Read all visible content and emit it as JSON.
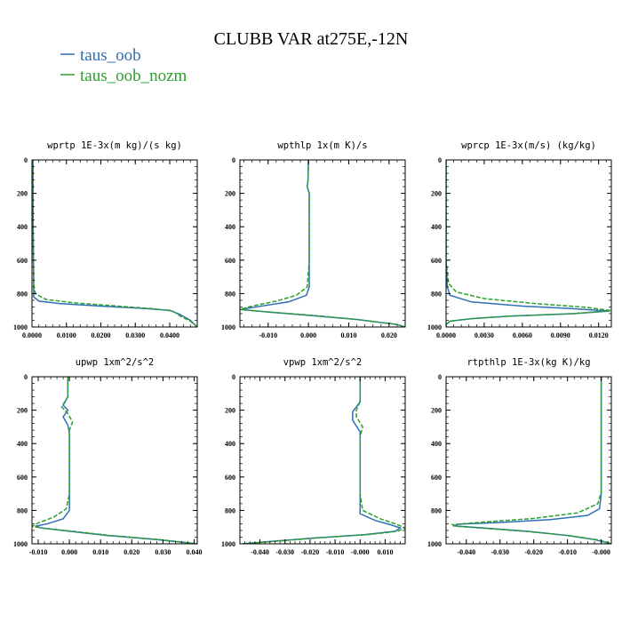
{
  "figure": {
    "title": "CLUBB VAR at275E,-12N",
    "legend": [
      {
        "label": "taus_oob",
        "color": "#2f6fb5",
        "dashed": false
      },
      {
        "label": "taus_oob_nozm",
        "color": "#2ca02c",
        "dashed": true
      }
    ]
  },
  "chart_data": [
    {
      "type": "line",
      "title": "wprtp  1E-3x(m kg)/(s kg)",
      "xlim": [
        0.0,
        0.048
      ],
      "ylim": [
        1000,
        0
      ],
      "xticks": [
        0.0,
        0.01,
        0.02,
        0.03,
        0.04
      ],
      "xticklabels": [
        "0.0000",
        "0.0100",
        "0.0200",
        "0.0300",
        "0.0400"
      ],
      "yticks": [
        0,
        200,
        400,
        600,
        800,
        1000
      ],
      "series": [
        {
          "name": "taus_oob",
          "points": [
            [
              0.0003,
              0
            ],
            [
              0.0003,
              300
            ],
            [
              0.0004,
              600
            ],
            [
              0.0005,
              780
            ],
            [
              0.0005,
              820
            ],
            [
              0.002,
              845
            ],
            [
              0.008,
              860
            ],
            [
              0.02,
              875
            ],
            [
              0.032,
              888
            ],
            [
              0.04,
              900
            ],
            [
              0.043,
              925
            ],
            [
              0.046,
              960
            ],
            [
              0.048,
              1000
            ]
          ]
        },
        {
          "name": "taus_oob_nozm",
          "points": [
            [
              0.0003,
              0
            ],
            [
              0.0003,
              300
            ],
            [
              0.0004,
              600
            ],
            [
              0.0006,
              760
            ],
            [
              0.001,
              800
            ],
            [
              0.004,
              835
            ],
            [
              0.012,
              855
            ],
            [
              0.025,
              875
            ],
            [
              0.035,
              890
            ],
            [
              0.041,
              905
            ],
            [
              0.043,
              935
            ],
            [
              0.046,
              965
            ],
            [
              0.048,
              1000
            ]
          ]
        }
      ]
    },
    {
      "type": "line",
      "title": "wpthlp  1x(m K)/s",
      "xlim": [
        -0.017,
        0.024
      ],
      "ylim": [
        1000,
        0
      ],
      "xticks": [
        -0.01,
        0.0,
        0.01,
        0.02
      ],
      "xticklabels": [
        "-0.010",
        "0.000",
        "0.010",
        "0.020"
      ],
      "yticks": [
        0,
        200,
        400,
        600,
        800,
        1000
      ],
      "series": [
        {
          "name": "taus_oob",
          "points": [
            [
              0.0,
              0
            ],
            [
              -0.0001,
              120
            ],
            [
              -0.0003,
              160
            ],
            [
              0.0002,
              200
            ],
            [
              0.0002,
              400
            ],
            [
              0.0002,
              600
            ],
            [
              0.0002,
              760
            ],
            [
              -0.0005,
              810
            ],
            [
              -0.005,
              850
            ],
            [
              -0.013,
              880
            ],
            [
              -0.017,
              895
            ],
            [
              -0.01,
              910
            ],
            [
              0.0,
              930
            ],
            [
              0.012,
              955
            ],
            [
              0.022,
              985
            ],
            [
              0.024,
              1000
            ]
          ]
        },
        {
          "name": "taus_oob_nozm",
          "points": [
            [
              0.0,
              0
            ],
            [
              -0.0001,
              120
            ],
            [
              -0.0003,
              160
            ],
            [
              0.0002,
              200
            ],
            [
              0.0002,
              400
            ],
            [
              0.0002,
              600
            ],
            [
              -0.0003,
              760
            ],
            [
              -0.003,
              810
            ],
            [
              -0.008,
              845
            ],
            [
              -0.014,
              875
            ],
            [
              -0.017,
              895
            ],
            [
              -0.009,
              912
            ],
            [
              0.001,
              930
            ],
            [
              0.012,
              955
            ],
            [
              0.022,
              985
            ],
            [
              0.024,
              1000
            ]
          ]
        }
      ]
    },
    {
      "type": "line",
      "title": "wprcp  1E-3x(m/s) (kg/kg)",
      "xlim": [
        0.0,
        0.013
      ],
      "ylim": [
        1000,
        0
      ],
      "xticks": [
        0.0,
        0.003,
        0.006,
        0.009,
        0.012
      ],
      "xticklabels": [
        "0.0000",
        "0.0030",
        "0.0060",
        "0.0090",
        "0.0120"
      ],
      "yticks": [
        0,
        200,
        400,
        600,
        800,
        1000
      ],
      "series": [
        {
          "name": "taus_oob",
          "points": [
            [
              0.0,
              0
            ],
            [
              0.0,
              600
            ],
            [
              0.0001,
              760
            ],
            [
              0.0003,
              810
            ],
            [
              0.002,
              850
            ],
            [
              0.006,
              875
            ],
            [
              0.01,
              890
            ],
            [
              0.0128,
              905
            ],
            [
              0.01,
              920
            ],
            [
              0.005,
              935
            ],
            [
              0.002,
              950
            ],
            [
              0.0003,
              965
            ],
            [
              0.0,
              985
            ],
            [
              0.0,
              1000
            ]
          ]
        },
        {
          "name": "taus_oob_nozm",
          "points": [
            [
              0.0,
              0
            ],
            [
              0.0,
              600
            ],
            [
              0.0002,
              740
            ],
            [
              0.0008,
              790
            ],
            [
              0.003,
              830
            ],
            [
              0.007,
              860
            ],
            [
              0.011,
              882
            ],
            [
              0.013,
              902
            ],
            [
              0.01,
              920
            ],
            [
              0.005,
              935
            ],
            [
              0.002,
              950
            ],
            [
              0.0003,
              965
            ],
            [
              0.0,
              985
            ],
            [
              0.0,
              1000
            ]
          ]
        }
      ]
    },
    {
      "type": "line",
      "title": "upwp  1xm^2/s^2",
      "xlim": [
        -0.012,
        0.041
      ],
      "ylim": [
        1000,
        0
      ],
      "xticks": [
        -0.01,
        0.0,
        0.01,
        0.02,
        0.03,
        0.04
      ],
      "xticklabels": [
        "-0.010",
        "0.000",
        "0.010",
        "0.020",
        "0.030",
        "0.040"
      ],
      "yticks": [
        0,
        200,
        400,
        600,
        800,
        1000
      ],
      "series": [
        {
          "name": "taus_oob",
          "points": [
            [
              -0.0005,
              0
            ],
            [
              -0.0005,
              120
            ],
            [
              -0.002,
              170
            ],
            [
              -0.0005,
              200
            ],
            [
              -0.002,
              240
            ],
            [
              -0.0005,
              290
            ],
            [
              0.0,
              340
            ],
            [
              0.0,
              500
            ],
            [
              0.0,
              700
            ],
            [
              0.0,
              800
            ],
            [
              -0.002,
              850
            ],
            [
              -0.007,
              880
            ],
            [
              -0.011,
              895
            ],
            [
              -0.009,
              905
            ],
            [
              0.0,
              925
            ],
            [
              0.012,
              950
            ],
            [
              0.028,
              975
            ],
            [
              0.041,
              1000
            ]
          ]
        },
        {
          "name": "taus_oob_nozm",
          "points": [
            [
              -0.0005,
              0
            ],
            [
              -0.0005,
              120
            ],
            [
              -0.0025,
              180
            ],
            [
              -0.0005,
              220
            ],
            [
              0.001,
              270
            ],
            [
              0.0,
              320
            ],
            [
              0.0,
              500
            ],
            [
              0.0,
              700
            ],
            [
              -0.001,
              790
            ],
            [
              -0.005,
              840
            ],
            [
              -0.01,
              875
            ],
            [
              -0.012,
              895
            ],
            [
              -0.008,
              908
            ],
            [
              0.001,
              925
            ],
            [
              0.013,
              950
            ],
            [
              0.029,
              975
            ],
            [
              0.041,
              1000
            ]
          ]
        }
      ]
    },
    {
      "type": "line",
      "title": "vpwp  1xm^2/s^2",
      "xlim": [
        -0.048,
        0.018
      ],
      "ylim": [
        1000,
        0
      ],
      "xticks": [
        -0.04,
        -0.03,
        -0.02,
        -0.01,
        0.0,
        0.01
      ],
      "xticklabels": [
        "-0.040",
        "-0.030",
        "-0.020",
        "-0.010",
        "-0.000",
        "0.010"
      ],
      "yticks": [
        0,
        200,
        400,
        600,
        800,
        1000
      ],
      "series": [
        {
          "name": "taus_oob",
          "points": [
            [
              0.0,
              0
            ],
            [
              0.0,
              150
            ],
            [
              -0.003,
              210
            ],
            [
              -0.003,
              260
            ],
            [
              0.0,
              330
            ],
            [
              0.0,
              500
            ],
            [
              0.0,
              700
            ],
            [
              0.0,
              820
            ],
            [
              0.006,
              860
            ],
            [
              0.012,
              885
            ],
            [
              0.016,
              905
            ],
            [
              0.014,
              925
            ],
            [
              0.002,
              945
            ],
            [
              -0.018,
              965
            ],
            [
              -0.035,
              985
            ],
            [
              -0.047,
              1000
            ]
          ]
        },
        {
          "name": "taus_oob_nozm",
          "points": [
            [
              0.0,
              0
            ],
            [
              0.0,
              150
            ],
            [
              -0.0015,
              200
            ],
            [
              -0.0015,
              240
            ],
            [
              0.001,
              300
            ],
            [
              0.0,
              360
            ],
            [
              0.0,
              500
            ],
            [
              0.0,
              700
            ],
            [
              0.001,
              800
            ],
            [
              0.008,
              850
            ],
            [
              0.014,
              880
            ],
            [
              0.018,
              905
            ],
            [
              0.015,
              925
            ],
            [
              0.003,
              945
            ],
            [
              -0.017,
              965
            ],
            [
              -0.034,
              985
            ],
            [
              -0.047,
              1000
            ]
          ]
        }
      ]
    },
    {
      "type": "line",
      "title": "rtpthlp  1E-3x(kg K)/kg",
      "xlim": [
        -0.046,
        0.003
      ],
      "ylim": [
        1000,
        0
      ],
      "xticks": [
        -0.04,
        -0.03,
        -0.02,
        -0.01,
        0.0
      ],
      "xticklabels": [
        "-0.040",
        "-0.030",
        "-0.020",
        "-0.010",
        "-0.000"
      ],
      "yticks": [
        0,
        200,
        400,
        600,
        800,
        1000
      ],
      "series": [
        {
          "name": "taus_oob",
          "points": [
            [
              0.0,
              0
            ],
            [
              0.0,
              400
            ],
            [
              0.0,
              700
            ],
            [
              -0.0005,
              790
            ],
            [
              -0.004,
              830
            ],
            [
              -0.015,
              855
            ],
            [
              -0.03,
              872
            ],
            [
              -0.042,
              882
            ],
            [
              -0.044,
              892
            ],
            [
              -0.035,
              905
            ],
            [
              -0.022,
              925
            ],
            [
              -0.01,
              950
            ],
            [
              -0.002,
              975
            ],
            [
              0.001,
              990
            ],
            [
              0.003,
              1000
            ]
          ]
        },
        {
          "name": "taus_oob_nozm",
          "points": [
            [
              0.0,
              0
            ],
            [
              0.0,
              400
            ],
            [
              0.0,
              690
            ],
            [
              -0.001,
              760
            ],
            [
              -0.007,
              815
            ],
            [
              -0.02,
              848
            ],
            [
              -0.035,
              870
            ],
            [
              -0.044,
              885
            ],
            [
              -0.043,
              895
            ],
            [
              -0.034,
              908
            ],
            [
              -0.021,
              928
            ],
            [
              -0.009,
              952
            ],
            [
              -0.001,
              977
            ],
            [
              0.002,
              992
            ],
            [
              0.003,
              1000
            ]
          ]
        }
      ]
    }
  ]
}
